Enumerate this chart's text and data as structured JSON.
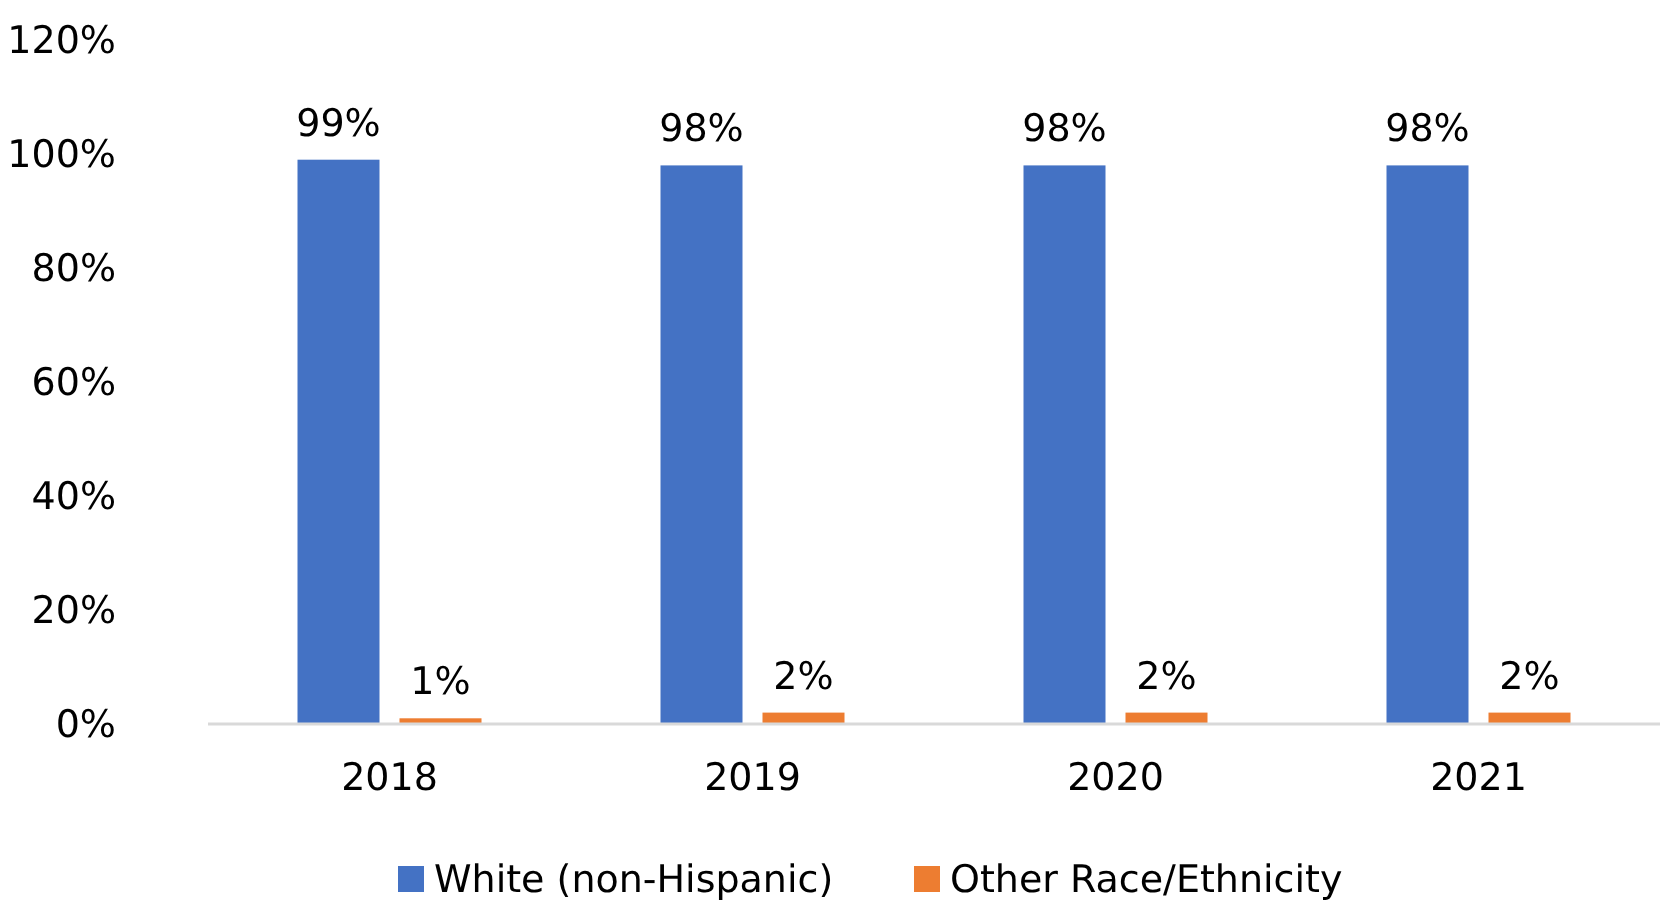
{
  "chart_data": {
    "type": "bar",
    "categories": [
      "2018",
      "2019",
      "2020",
      "2021"
    ],
    "series": [
      {
        "name": "White (non-Hispanic)",
        "color": "#4472c4",
        "values": [
          99,
          98,
          98,
          98
        ],
        "value_labels": [
          "99%",
          "98%",
          "98%",
          "98%"
        ]
      },
      {
        "name": "Other Race/Ethnicity",
        "color": "#ed7d31",
        "values": [
          1,
          2,
          2,
          2
        ],
        "value_labels": [
          "1%",
          "2%",
          "2%",
          "2%"
        ]
      }
    ],
    "ylim": [
      0,
      120
    ],
    "yticks": [
      {
        "value": 0,
        "label": "0%"
      },
      {
        "value": 20,
        "label": "20%"
      },
      {
        "value": 40,
        "label": "40%"
      },
      {
        "value": 60,
        "label": "60%"
      },
      {
        "value": 80,
        "label": "80%"
      },
      {
        "value": 100,
        "label": "100%"
      },
      {
        "value": 120,
        "label": "120%"
      }
    ],
    "legend": "bottom",
    "grid": false
  }
}
